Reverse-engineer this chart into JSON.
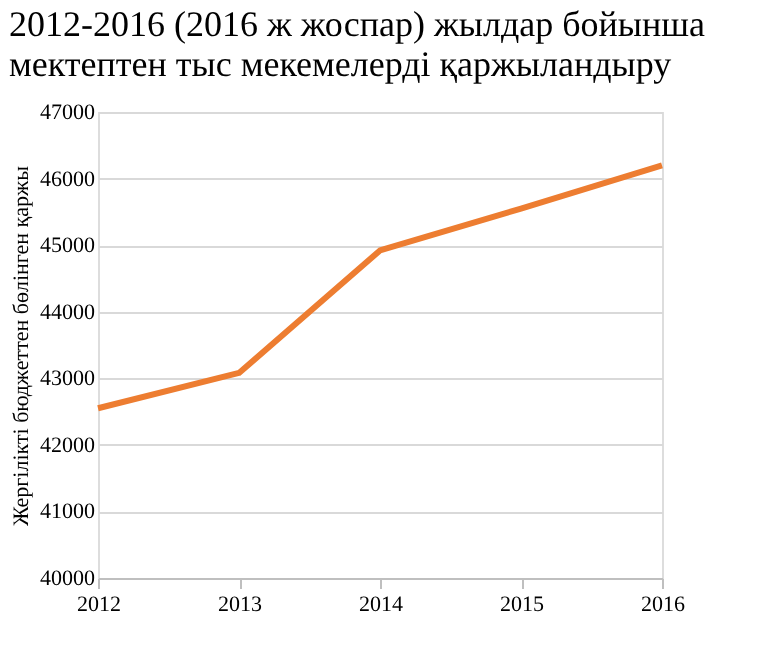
{
  "chart_data": {
    "type": "line",
    "title": "2012-2016 (2016 ж жоспар) жылдар бойынша\nмектептен тыс мекемелерді қаржыландыру",
    "ylabel": "Жергілікті бюджеттен бөлінген қаржы",
    "x": [
      2012,
      2013,
      2014,
      2015,
      2016
    ],
    "series": [
      {
        "color": "#ed7d31",
        "values": [
          42550,
          43080,
          44920,
          45550,
          46200
        ]
      }
    ],
    "xlim": [
      2012,
      2016
    ],
    "xticks": [
      2012,
      2013,
      2014,
      2015,
      2016
    ],
    "ylim": [
      40000,
      47000
    ],
    "yticks": [
      40000,
      41000,
      42000,
      43000,
      44000,
      45000,
      46000,
      47000
    ],
    "grid": "y",
    "marker": "none",
    "line_style": "solid"
  }
}
